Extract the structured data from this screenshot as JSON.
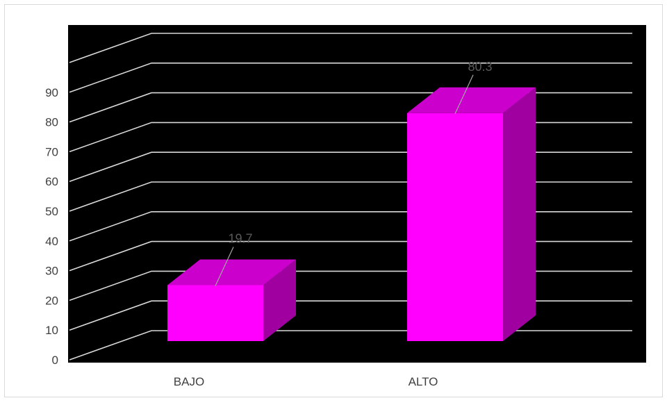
{
  "chart_data": {
    "type": "bar",
    "title": "",
    "xlabel": "",
    "ylabel": "",
    "categories": [
      "BAJO",
      "ALTO"
    ],
    "values": [
      19.7,
      80.3
    ],
    "data_labels": [
      "19.7",
      "80.3"
    ],
    "y_ticks": [
      "0",
      "10",
      "20",
      "30",
      "40",
      "50",
      "60",
      "70",
      "80",
      "90"
    ],
    "ylim": [
      0,
      110
    ],
    "grid": true,
    "three_d": true,
    "colors": {
      "plot_background": "#000000",
      "gridline": "#d9d9d9",
      "bar_front": "#ff00ff",
      "bar_top": "#cc00cc",
      "bar_side": "#a000a0",
      "data_label": "#595959",
      "axis_text": "#404040"
    }
  }
}
